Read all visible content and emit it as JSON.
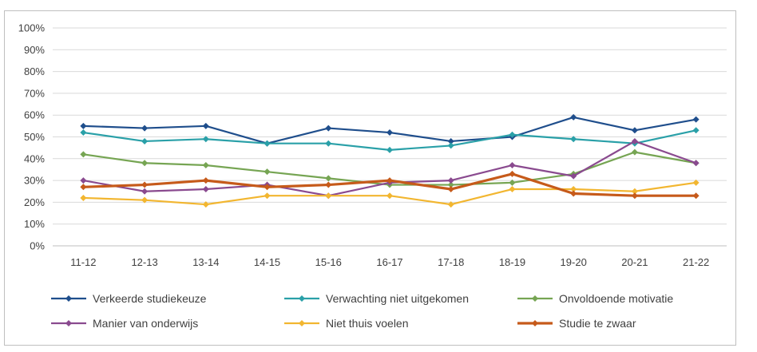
{
  "chart_data": {
    "type": "line",
    "categories": [
      "11-12",
      "12-13",
      "13-14",
      "14-15",
      "15-16",
      "16-17",
      "17-18",
      "18-19",
      "19-20",
      "20-21",
      "21-22"
    ],
    "ylim": [
      0,
      100
    ],
    "yticks": [
      "0%",
      "10%",
      "20%",
      "30%",
      "40%",
      "50%",
      "60%",
      "70%",
      "80%",
      "90%",
      "100%"
    ],
    "grid": true,
    "legend_position": "bottom",
    "series": [
      {
        "name": "Verkeerde studiekeuze",
        "color": "#1f4e8c",
        "width": 2.2,
        "values": [
          55,
          54,
          55,
          47,
          54,
          52,
          48,
          50,
          59,
          53,
          58
        ]
      },
      {
        "name": "Verwachting niet uitgekomen",
        "color": "#2aa0a8",
        "width": 2.2,
        "values": [
          52,
          48,
          49,
          47,
          47,
          44,
          46,
          51,
          49,
          47,
          53
        ]
      },
      {
        "name": "Onvoldoende motivatie",
        "color": "#76a553",
        "width": 2.2,
        "values": [
          42,
          38,
          37,
          34,
          31,
          28,
          28,
          29,
          33,
          43,
          38
        ]
      },
      {
        "name": "Manier van onderwijs",
        "color": "#8a4a8f",
        "width": 2.2,
        "values": [
          30,
          25,
          26,
          28,
          23,
          29,
          30,
          37,
          32,
          48,
          38
        ]
      },
      {
        "name": "Niet thuis voelen",
        "color": "#f2b630",
        "width": 2.2,
        "values": [
          22,
          21,
          19,
          23,
          23,
          23,
          19,
          26,
          26,
          25,
          29
        ]
      },
      {
        "name": "Studie te zwaar",
        "color": "#c65a1a",
        "width": 3.2,
        "values": [
          27,
          28,
          30,
          27,
          28,
          30,
          26,
          33,
          24,
          23,
          23
        ]
      }
    ]
  }
}
